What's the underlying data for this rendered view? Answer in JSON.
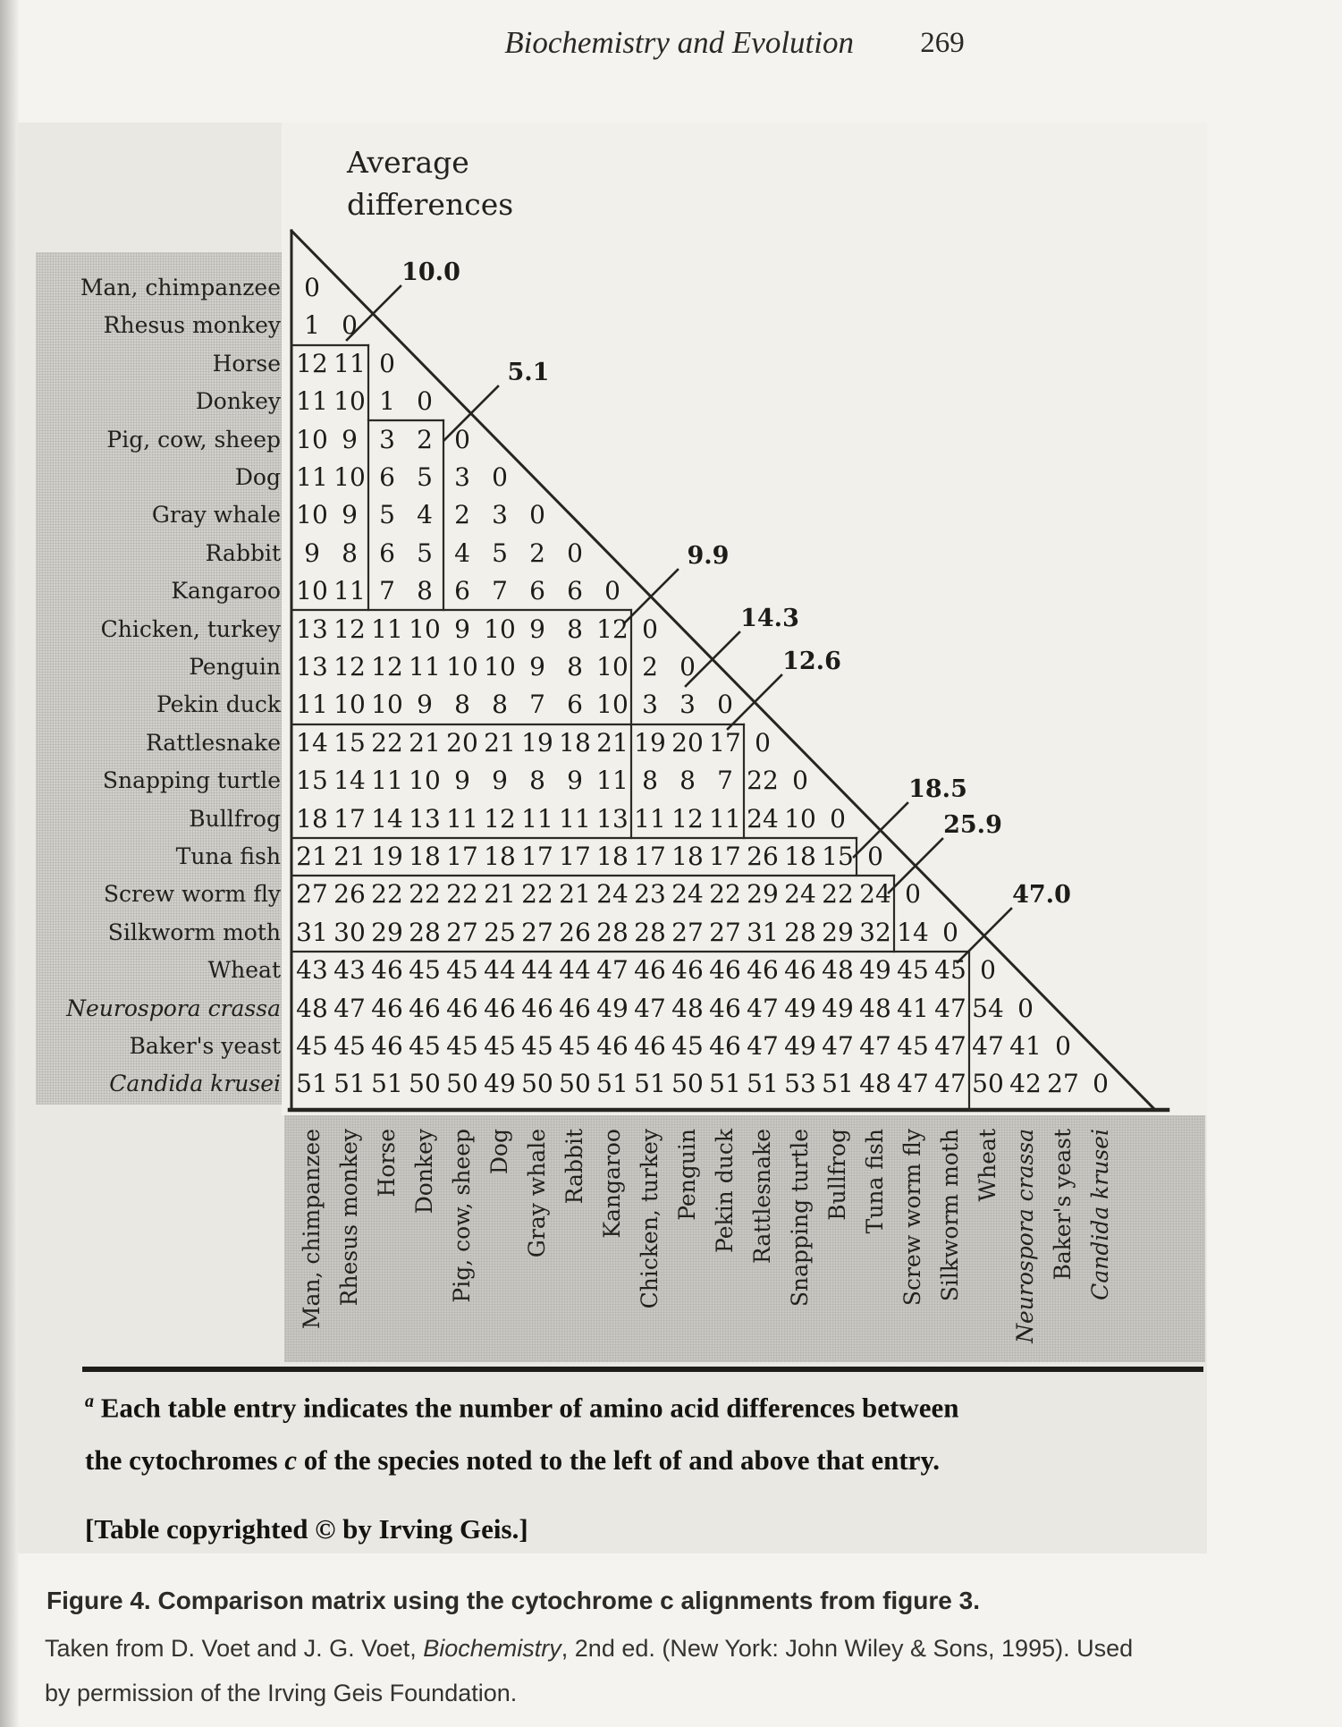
{
  "page_header": {
    "running_title": "Biochemistry and Evolution",
    "page_number": "269"
  },
  "matrix": {
    "title": "Average differences",
    "species": [
      {
        "name": "Man, chimpanzee",
        "italic": false
      },
      {
        "name": "Rhesus monkey",
        "italic": false
      },
      {
        "name": "Horse",
        "italic": false
      },
      {
        "name": "Donkey",
        "italic": false
      },
      {
        "name": "Pig, cow, sheep",
        "italic": false
      },
      {
        "name": "Dog",
        "italic": false
      },
      {
        "name": "Gray whale",
        "italic": false
      },
      {
        "name": "Rabbit",
        "italic": false
      },
      {
        "name": "Kangaroo",
        "italic": false
      },
      {
        "name": "Chicken, turkey",
        "italic": false
      },
      {
        "name": "Penguin",
        "italic": false
      },
      {
        "name": "Pekin duck",
        "italic": false
      },
      {
        "name": "Rattlesnake",
        "italic": false
      },
      {
        "name": "Snapping turtle",
        "italic": false
      },
      {
        "name": "Bullfrog",
        "italic": false
      },
      {
        "name": "Tuna fish",
        "italic": false
      },
      {
        "name": "Screw worm fly",
        "italic": false
      },
      {
        "name": "Silkworm moth",
        "italic": false
      },
      {
        "name": "Wheat",
        "italic": false
      },
      {
        "name": "Neurospora crassa",
        "italic": true
      },
      {
        "name": "Baker's yeast",
        "italic": false
      },
      {
        "name": "Candida krusei",
        "italic": true
      }
    ],
    "values": [
      [
        0
      ],
      [
        1,
        0
      ],
      [
        12,
        11,
        0
      ],
      [
        11,
        10,
        1,
        0
      ],
      [
        10,
        9,
        3,
        2,
        0
      ],
      [
        11,
        10,
        6,
        5,
        3,
        0
      ],
      [
        10,
        9,
        5,
        4,
        2,
        3,
        0
      ],
      [
        9,
        8,
        6,
        5,
        4,
        5,
        2,
        0
      ],
      [
        10,
        11,
        7,
        8,
        6,
        7,
        6,
        6,
        0
      ],
      [
        13,
        12,
        11,
        10,
        9,
        10,
        9,
        8,
        12,
        0
      ],
      [
        13,
        12,
        12,
        11,
        10,
        10,
        9,
        8,
        10,
        2,
        0
      ],
      [
        11,
        10,
        10,
        9,
        8,
        8,
        7,
        6,
        10,
        3,
        3,
        0
      ],
      [
        14,
        15,
        22,
        21,
        20,
        21,
        19,
        18,
        21,
        19,
        20,
        17,
        0
      ],
      [
        15,
        14,
        11,
        10,
        9,
        9,
        8,
        9,
        11,
        8,
        8,
        7,
        22,
        0
      ],
      [
        18,
        17,
        14,
        13,
        11,
        12,
        11,
        11,
        13,
        11,
        12,
        11,
        24,
        10,
        0
      ],
      [
        21,
        21,
        19,
        18,
        17,
        18,
        17,
        17,
        18,
        17,
        18,
        17,
        26,
        18,
        15,
        0
      ],
      [
        27,
        26,
        22,
        22,
        22,
        21,
        22,
        21,
        24,
        23,
        24,
        22,
        29,
        24,
        22,
        24,
        0
      ],
      [
        31,
        30,
        29,
        28,
        27,
        25,
        27,
        26,
        28,
        28,
        27,
        27,
        31,
        28,
        29,
        32,
        14,
        0
      ],
      [
        43,
        43,
        46,
        45,
        45,
        44,
        44,
        44,
        47,
        46,
        46,
        46,
        46,
        46,
        48,
        49,
        45,
        45,
        0
      ],
      [
        48,
        47,
        46,
        46,
        46,
        46,
        46,
        46,
        49,
        47,
        48,
        46,
        47,
        49,
        49,
        48,
        41,
        47,
        54,
        0
      ],
      [
        45,
        45,
        46,
        45,
        45,
        45,
        45,
        45,
        46,
        46,
        45,
        46,
        47,
        49,
        47,
        47,
        45,
        47,
        47,
        41,
        0
      ],
      [
        51,
        51,
        51,
        50,
        50,
        49,
        50,
        50,
        51,
        51,
        50,
        51,
        51,
        53,
        51,
        48,
        47,
        47,
        50,
        42,
        27,
        0
      ]
    ],
    "average_differences": [
      "10.0",
      "5.1",
      "9.9",
      "14.3",
      "12.6",
      "18.5",
      "25.9",
      "47.0"
    ]
  },
  "footnote": {
    "marker": "a",
    "line1": " Each table entry indicates the number of amino acid differences between",
    "line2_pre": "the cytochromes ",
    "line2_em": "c",
    "line2_post": " of the species noted to the left of and above that entry.",
    "copyright_note": "[Table copyrighted © by Irving Geis.]"
  },
  "caption": {
    "title": "Figure 4. Comparison matrix using the cytochrome c alignments from figure 3.",
    "credit_pre": "Taken from D. Voet and J. G. Voet, ",
    "credit_book": "Biochemistry",
    "credit_post": ", 2nd ed. (New York: John Wiley & Sons, 1995). Used",
    "credit_line2": "by permission of the Irving Geis Foundation."
  }
}
